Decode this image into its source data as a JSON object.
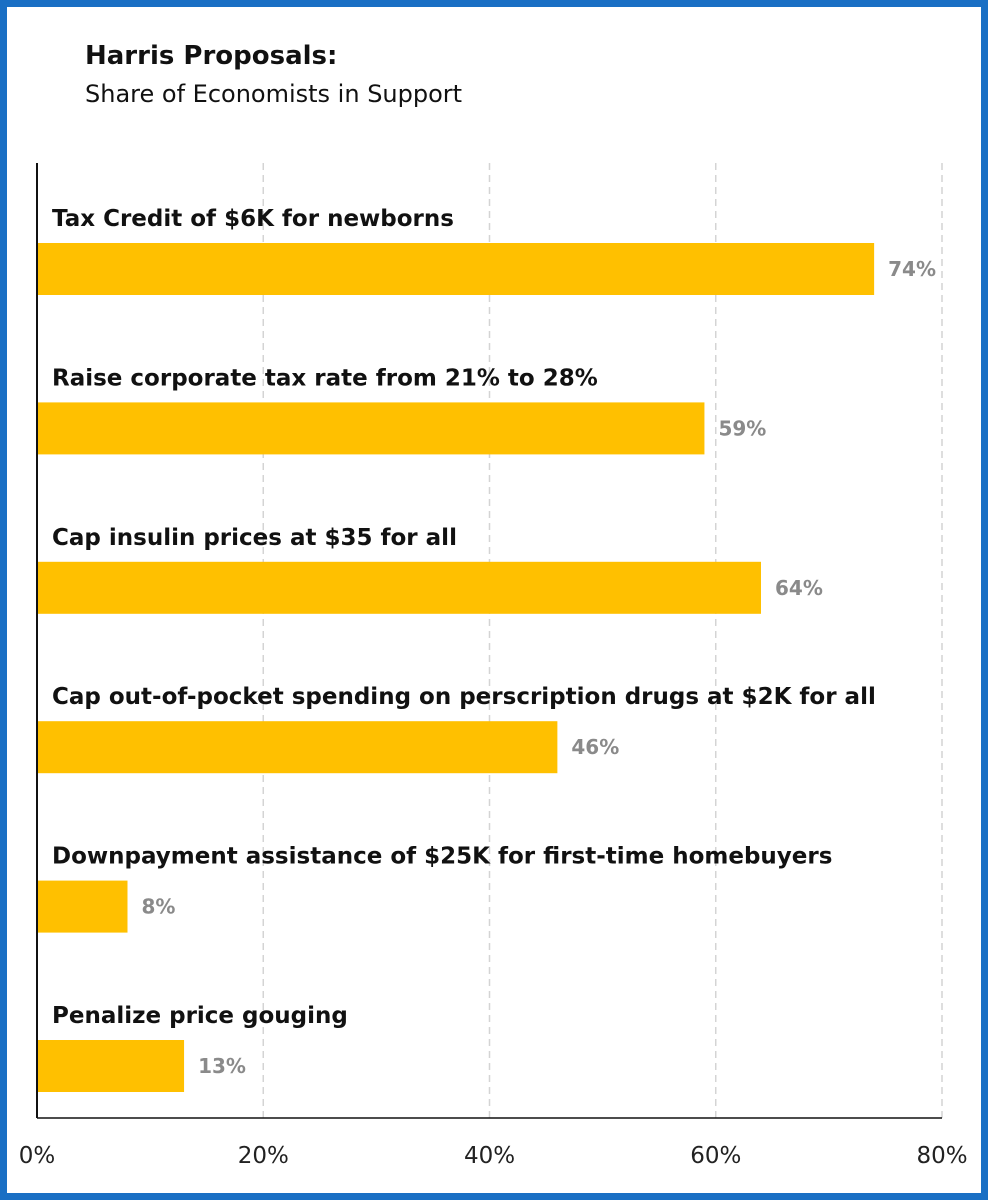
{
  "chart_data": {
    "type": "bar",
    "orientation": "horizontal",
    "title": "Harris Proposals:",
    "subtitle": "Share of Economists in Support",
    "categories": [
      "Tax Credit of $6K for newborns",
      "Raise corporate tax rate from 21% to 28%",
      "Cap insulin prices at $35 for all",
      "Cap out-of-pocket spending on perscription drugs at $2K for all",
      "Downpayment assistance of $25K for first-time homebuyers",
      "Penalize price gouging"
    ],
    "values": [
      74,
      59,
      64,
      46,
      8,
      13
    ],
    "value_labels": [
      "74%",
      "59%",
      "64%",
      "46%",
      "8%",
      "13%"
    ],
    "xlim": [
      0,
      80
    ],
    "x_ticks": [
      0,
      20,
      40,
      60,
      80
    ],
    "x_tick_labels": [
      "0%",
      "20%",
      "40%",
      "60%",
      "80%"
    ],
    "grid": "vertical dashed",
    "bar_color": "#ffc000",
    "value_label_color": "#8a8a8a",
    "frame_color": "#1a6fc4"
  }
}
